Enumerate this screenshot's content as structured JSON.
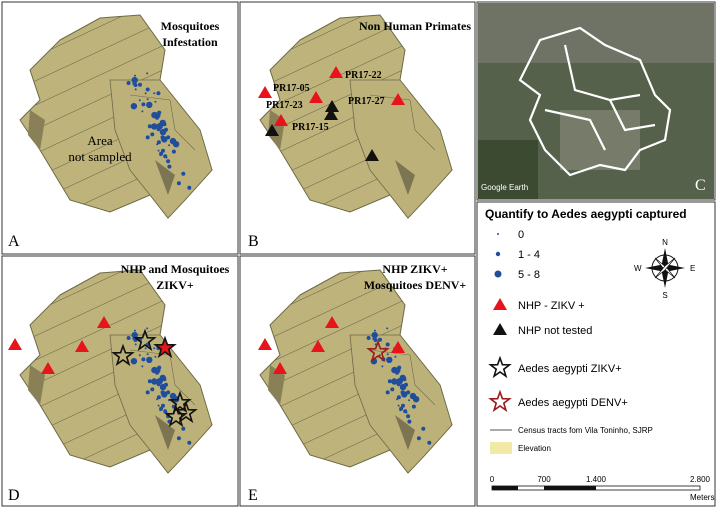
{
  "panels": {
    "a": {
      "letter": "A",
      "title": [
        "Mosquitoes",
        "Infestation"
      ],
      "note": [
        "Area",
        "not sampled"
      ]
    },
    "b": {
      "letter": "B",
      "title": "Non Human Primates",
      "labels": [
        "PR17-05",
        "PR17-22",
        "PR17-23",
        "PR17-27",
        "PR17-15"
      ]
    },
    "c": {
      "letter": "C",
      "watermark": "Google Earth"
    },
    "d": {
      "letter": "D",
      "title": [
        "NHP and Mosquitoes",
        "ZIKV+"
      ]
    },
    "e": {
      "letter": "E",
      "title": [
        "NHP  ZIKV+",
        "Mosquitoes DENV+"
      ]
    }
  },
  "legend": {
    "title": "Quantify to Aedes aegypti captured",
    "sizes": [
      "0",
      "1 - 4",
      "5 - 8"
    ],
    "symbols": [
      "NHP - ZIKV +",
      "NHP not tested",
      "Aedes aegypti ZIKV+",
      "Aedes aegypti DENV+"
    ],
    "lines": [
      "Census tracts fom Vila Toninho, SJRP",
      "Elevation"
    ]
  },
  "compass": {
    "n": "N",
    "e": "E",
    "s": "S",
    "w": "W"
  },
  "scale": {
    "ticks": [
      "0",
      "700",
      "1.400",
      "2.800"
    ],
    "unit": "Meters"
  }
}
